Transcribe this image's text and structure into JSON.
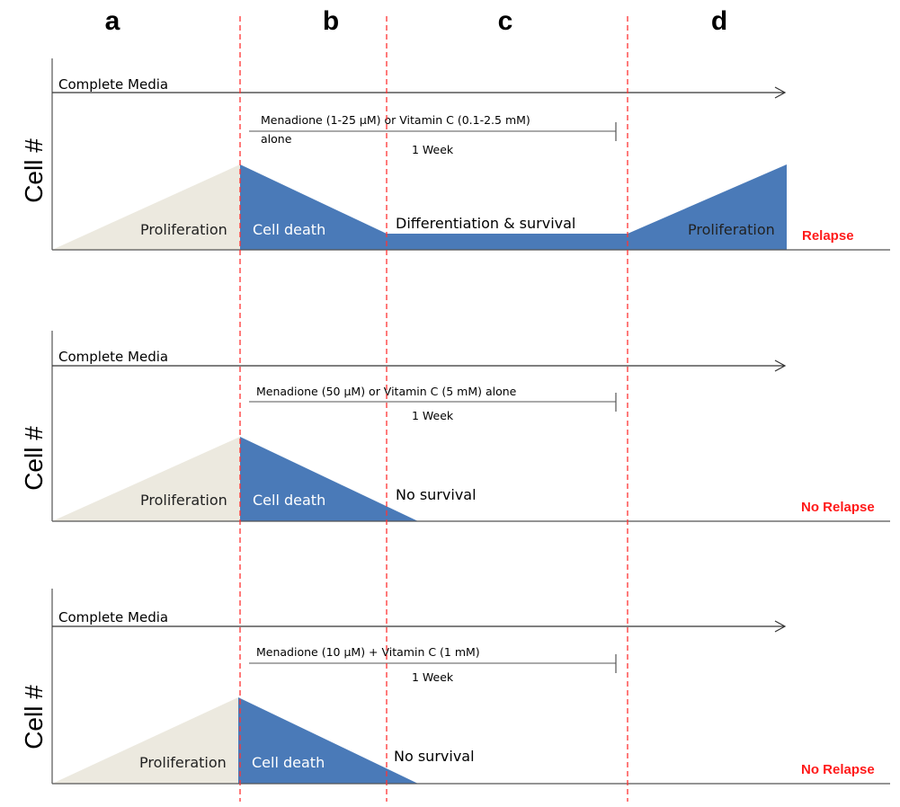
{
  "phases": [
    "a",
    "b",
    "c",
    "d"
  ],
  "y_axis_label": "Cell #",
  "colors": {
    "proliferation_fill": "#ece9df",
    "treatment_fill": "#4a7ab8",
    "divider": "#ff3333",
    "outcome_text": "#ff1a1a",
    "axis": "#555555"
  },
  "panels": [
    {
      "media_label": "Complete Media",
      "treatment_lines": [
        "Menadione (1-25 µM) or Vitamin C (0.1-2.5  mM)",
        "alone"
      ],
      "duration": "1 Week",
      "labels": {
        "proliferation": "Proliferation",
        "cell_death": "Cell death",
        "survival": "Differentiation & survival",
        "regrowth": "Proliferation"
      },
      "outcome": "Relapse"
    },
    {
      "media_label": "Complete Media",
      "treatment_lines": [
        "Menadione (50 µM) or  Vitamin C (5  mM) alone"
      ],
      "duration": "1 Week",
      "labels": {
        "proliferation": "Proliferation",
        "cell_death": "Cell death",
        "survival": "No survival"
      },
      "outcome": "No Relapse"
    },
    {
      "media_label": "Complete Media",
      "treatment_lines": [
        "Menadione (10 µM) +  Vitamin C (1  mM)"
      ],
      "duration": "1 Week",
      "labels": {
        "proliferation": "Proliferation",
        "cell_death": "Cell death",
        "survival": "No survival"
      },
      "outcome": "No Relapse"
    }
  ]
}
